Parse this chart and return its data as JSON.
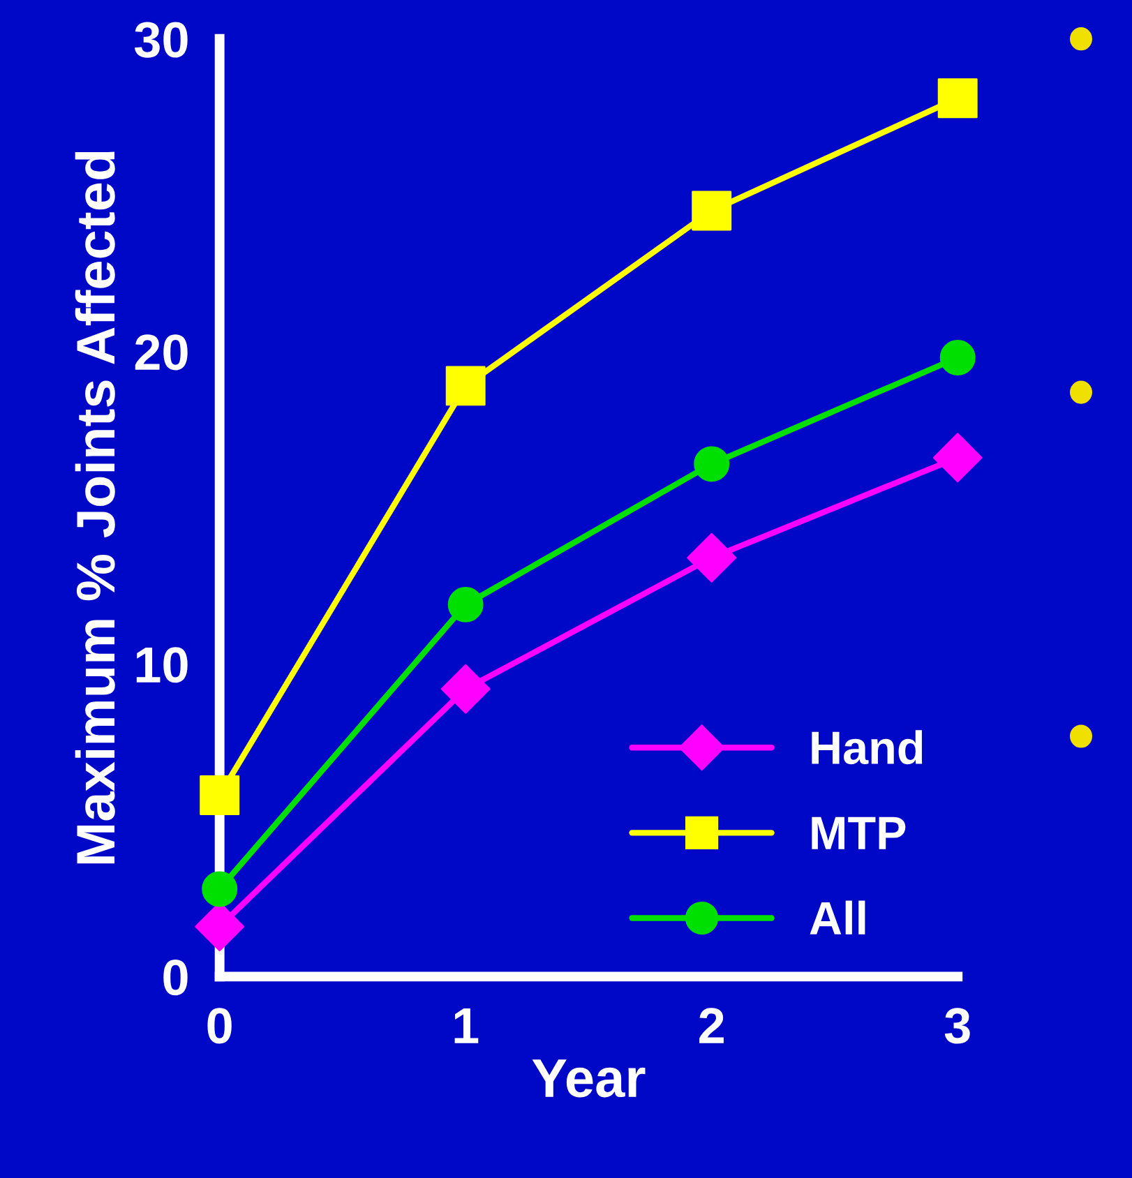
{
  "chart_data": {
    "type": "line",
    "xlabel": "Year",
    "ylabel": "Maximum % Joints Affected",
    "x": [
      0,
      1,
      2,
      3
    ],
    "xlim": [
      0,
      3
    ],
    "xticks": [
      0,
      1,
      2,
      3
    ],
    "ylim": [
      0,
      30
    ],
    "yticks": [
      0,
      10,
      20,
      30
    ],
    "grid": false,
    "legend": "bottom right",
    "line_style": "solid",
    "series": [
      {
        "name": "Hand",
        "color": "#ff00ff",
        "marker": "diamond",
        "values": [
          1.6,
          9.2,
          13.4,
          16.6
        ]
      },
      {
        "name": "MTP",
        "color": "#ffff00",
        "marker": "square",
        "values": [
          5.8,
          18.9,
          24.5,
          28.1
        ]
      },
      {
        "name": "All",
        "color": "#00e000",
        "marker": "circle",
        "values": [
          2.8,
          11.9,
          16.4,
          19.8
        ]
      }
    ]
  }
}
